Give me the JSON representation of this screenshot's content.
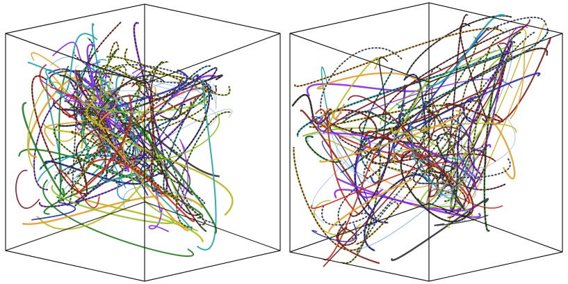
{
  "figure": {
    "panels": [
      {
        "id": "left",
        "description_hidden": true,
        "palette": [
          "#1f7a1f",
          "#7a1f1f",
          "#2e2ea8",
          "#8a2be2",
          "#b8b820",
          "#20a0b0",
          "#c03020",
          "#90c030",
          "#6fa0c8",
          "#e0a030",
          "#303030",
          "#a0b8d8"
        ],
        "seed": 11,
        "filament_count": 170
      },
      {
        "id": "right",
        "description_hidden": true,
        "palette": [
          "#1f7a1f",
          "#7a1f1f",
          "#2e2ea8",
          "#8a2be2",
          "#b8b820",
          "#20a0b0",
          "#c03020",
          "#90c030",
          "#6fa0c8",
          "#e0a030",
          "#303030",
          "#a0b8d8"
        ],
        "seed": 47,
        "filament_count": 150
      }
    ]
  }
}
